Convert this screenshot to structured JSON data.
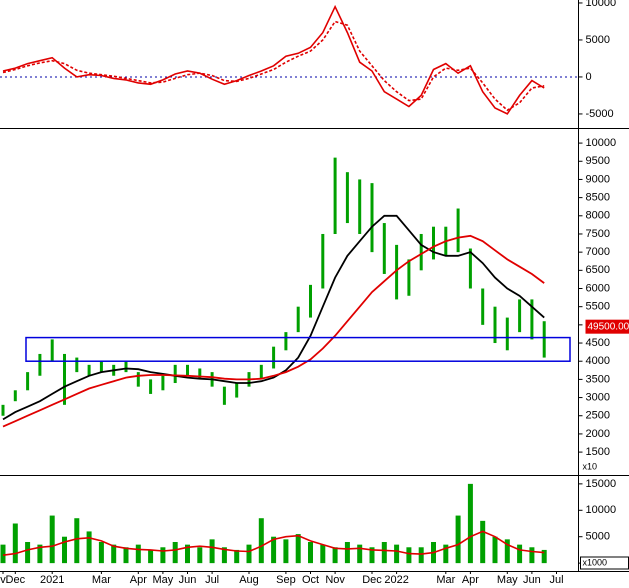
{
  "chart_data": [
    {
      "type": "line",
      "series": [
        {
          "color": "#e00000",
          "style": "solid",
          "values": [
            800,
            1200,
            1800,
            2200,
            2600,
            1200,
            0,
            300,
            200,
            -200,
            -400,
            -800,
            -1000,
            -400,
            400,
            800,
            500,
            -300,
            -1000,
            -500,
            200,
            800,
            1500,
            2800,
            3200,
            4000,
            6000,
            9500,
            6000,
            2000,
            800,
            -2000,
            -3000,
            -4000,
            -2500,
            1000,
            1800,
            500,
            1500,
            -2000,
            -4200,
            -5000,
            -2500,
            -500,
            -1500,
            null
          ]
        },
        {
          "color": "#e00000",
          "style": "dashed",
          "values": [
            600,
            1000,
            1500,
            1900,
            2200,
            1800,
            900,
            500,
            300,
            100,
            -200,
            -500,
            -800,
            -700,
            -200,
            300,
            500,
            200,
            -500,
            -600,
            -200,
            400,
            1000,
            2000,
            2800,
            3500,
            5000,
            7500,
            7000,
            3500,
            1500,
            -500,
            -2000,
            -3200,
            -3000,
            0,
            1200,
            900,
            1200,
            -800,
            -3000,
            -4500,
            -3500,
            -1500,
            -1200,
            null
          ]
        }
      ],
      "ylim": [
        -6900,
        10400
      ],
      "yticks": [
        10000,
        5000,
        0,
        -5000
      ],
      "zero_line": true
    },
    {
      "type": "candlestick",
      "color": "#00a000",
      "high": [
        2800,
        3200,
        3700,
        4200,
        4600,
        4200,
        4100,
        3900,
        4000,
        3900,
        4000,
        3700,
        3500,
        3600,
        3900,
        3900,
        3800,
        3700,
        3300,
        3400,
        3700,
        3900,
        4400,
        4800,
        5500,
        6100,
        7500,
        9600,
        9200,
        9000,
        8900,
        7800,
        7200,
        6800,
        7500,
        7700,
        7700,
        8200,
        7100,
        6000,
        5500,
        5200,
        5700,
        5700,
        5100,
        null
      ],
      "low": [
        2500,
        2900,
        3200,
        3600,
        4000,
        2800,
        3700,
        3600,
        3700,
        3600,
        3700,
        3300,
        3100,
        3200,
        3400,
        3600,
        3500,
        3300,
        2800,
        3000,
        3300,
        3500,
        3800,
        4300,
        4800,
        5200,
        6000,
        7500,
        7800,
        7500,
        7000,
        6400,
        5700,
        5800,
        6500,
        6800,
        6900,
        7000,
        6000,
        5000,
        4500,
        4300,
        4800,
        4600,
        4100,
        null
      ],
      "series": [
        {
          "color": "#000000",
          "values": [
            2400,
            2600,
            2750,
            2900,
            3100,
            3300,
            3450,
            3600,
            3700,
            3750,
            3800,
            3780,
            3700,
            3650,
            3600,
            3550,
            3520,
            3500,
            3450,
            3400,
            3400,
            3450,
            3550,
            3750,
            4100,
            4700,
            5500,
            6300,
            6900,
            7300,
            7700,
            8000,
            8000,
            7600,
            7200,
            7000,
            6900,
            6900,
            7000,
            6700,
            6300,
            6000,
            5800,
            5500,
            5200,
            null
          ]
        },
        {
          "color": "#e00000",
          "values": [
            2200,
            2350,
            2500,
            2650,
            2800,
            2950,
            3100,
            3250,
            3350,
            3450,
            3550,
            3600,
            3620,
            3620,
            3610,
            3600,
            3580,
            3560,
            3520,
            3500,
            3500,
            3520,
            3600,
            3700,
            3850,
            4050,
            4350,
            4700,
            5100,
            5500,
            5900,
            6200,
            6500,
            6750,
            6950,
            7150,
            7300,
            7400,
            7450,
            7300,
            7050,
            6800,
            6600,
            6400,
            6150,
            null
          ]
        }
      ],
      "zone": {
        "low": 4000,
        "high": 4650,
        "color": "#0000dd"
      },
      "last_price": {
        "value": 4950,
        "label": "49500.00",
        "color": "#e00000"
      },
      "unit": "x10",
      "ylim": [
        870,
        10360
      ],
      "yticks": [
        10000,
        9500,
        9000,
        8500,
        8000,
        7500,
        7000,
        6500,
        6000,
        5500,
        5000,
        4500,
        4000,
        3500,
        3000,
        2500,
        2000,
        1500
      ]
    },
    {
      "type": "bar",
      "categories": [
        "v",
        "Dec",
        null,
        null,
        "2021",
        null,
        null,
        null,
        "Mar",
        null,
        null,
        "Apr",
        null,
        "May",
        null,
        "Jun",
        null,
        "Jul",
        null,
        null,
        "Aug",
        null,
        null,
        "Sep",
        null,
        "Oct",
        null,
        "Nov",
        null,
        null,
        "Dec",
        null,
        "2022",
        null,
        null,
        null,
        "Mar",
        null,
        "Apr",
        null,
        null,
        "May",
        null,
        "Jun",
        null,
        "Jul"
      ],
      "color": "#00a000",
      "values": [
        3500,
        7500,
        4000,
        3500,
        9000,
        5000,
        8500,
        6000,
        4000,
        3500,
        3000,
        3500,
        2500,
        3000,
        4000,
        3500,
        3000,
        4500,
        3000,
        2500,
        3500,
        8500,
        5000,
        4500,
        5500,
        4000,
        3500,
        3000,
        4000,
        3500,
        3000,
        4000,
        3500,
        3000,
        3000,
        4000,
        3500,
        9000,
        15000,
        8000,
        5000,
        4500,
        3500,
        3000,
        2500,
        null
      ],
      "series": [
        {
          "color": "#e00000",
          "values": [
            1500,
            1800,
            2500,
            3000,
            3200,
            4000,
            4600,
            4800,
            4200,
            3200,
            2800,
            2600,
            2500,
            2300,
            2500,
            3000,
            3200,
            3000,
            2600,
            2300,
            2200,
            3200,
            4500,
            5000,
            5200,
            4200,
            3500,
            2800,
            2700,
            2800,
            2500,
            2400,
            2300,
            1800,
            1700,
            2000,
            2800,
            3500,
            5000,
            6000,
            5000,
            3500,
            2500,
            2200,
            2000,
            null
          ]
        }
      ],
      "unit": "x1000",
      "ylim": [
        -1300,
        16300
      ],
      "yticks": [
        15000,
        10000,
        5000,
        0
      ]
    }
  ]
}
